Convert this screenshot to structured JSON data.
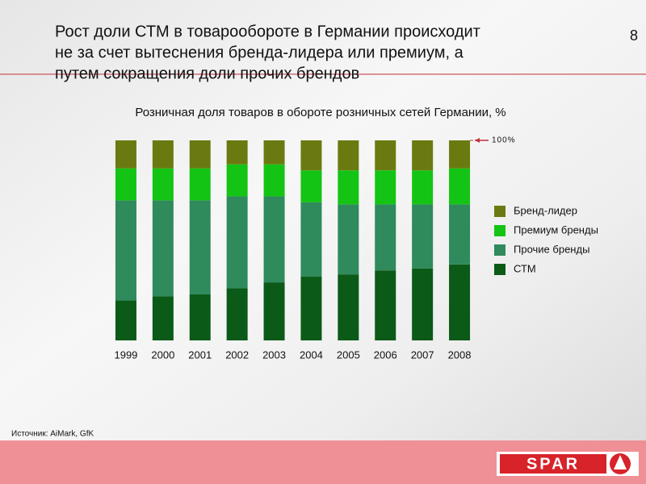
{
  "slide": {
    "title": [
      "Рост доли СТМ в товарообороте в Германии происходит",
      "не за счет вытеснения бренда-лидера или премиум, а",
      "путем сокращения доли прочих брендов"
    ],
    "page_number": "8",
    "source": "Источник: AiMark, GfK",
    "logo": "SPAR"
  },
  "chart_data": {
    "type": "stacked_bar",
    "title": "Розничная доля товаров в обороте розничных сетей Германии, %",
    "categories": [
      "1999",
      "2000",
      "2001",
      "2002",
      "2003",
      "2004",
      "2005",
      "2006",
      "2007",
      "2008"
    ],
    "series": [
      {
        "name": "Бренд-лидер",
        "color": "#6b7a10",
        "values": [
          14,
          14,
          14,
          12,
          12,
          15,
          15,
          15,
          15,
          14
        ]
      },
      {
        "name": "Премиум бренды",
        "color": "#14c414",
        "values": [
          16,
          16,
          16,
          16,
          16,
          16,
          17,
          17,
          17,
          18
        ]
      },
      {
        "name": "Прочие бренды",
        "color": "#2f8a5c",
        "values": [
          50,
          48,
          47,
          46,
          43,
          37,
          35,
          33,
          32,
          30
        ]
      },
      {
        "name": "СТМ",
        "color": "#0b5a18",
        "values": [
          20,
          22,
          23,
          26,
          29,
          32,
          33,
          35,
          36,
          38
        ]
      }
    ],
    "ylim": [
      0,
      100
    ],
    "yticks": [
      {
        "value": 100,
        "label": "100%"
      }
    ],
    "legend": "right"
  }
}
